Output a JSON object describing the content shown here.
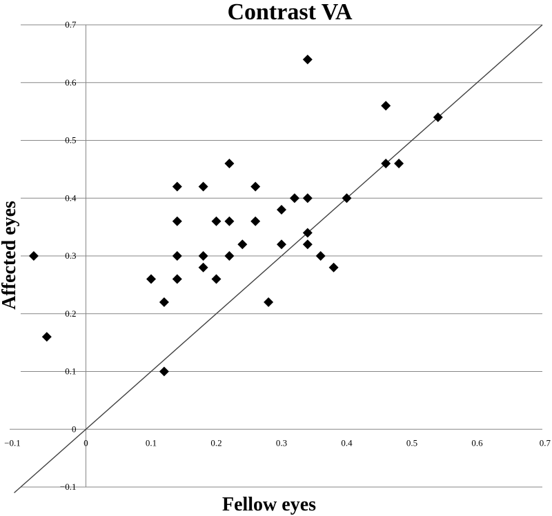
{
  "chart_data": {
    "type": "scatter",
    "title": "Contrast VA",
    "xlabel": "Fellow eyes",
    "ylabel": "Affected eyes",
    "xlim": [
      -0.1,
      0.7
    ],
    "ylim": [
      -0.1,
      0.7
    ],
    "xticks": [
      "−0.1",
      "0",
      "0.1",
      "0.2",
      "0.3",
      "0.4",
      "0.5",
      "0.6",
      "0.7"
    ],
    "yticks": [
      "−0.1",
      "0",
      "0.1",
      "0.2",
      "0.3",
      "0.4",
      "0.5",
      "0.6",
      "0.7"
    ],
    "grid": "horizontal",
    "reference_line": "y = x",
    "marker": "diamond",
    "point_color": "#000000",
    "points": [
      {
        "x": -0.08,
        "y": 0.3
      },
      {
        "x": -0.06,
        "y": 0.16
      },
      {
        "x": 0.1,
        "y": 0.26
      },
      {
        "x": 0.12,
        "y": 0.22
      },
      {
        "x": 0.12,
        "y": 0.1
      },
      {
        "x": 0.14,
        "y": 0.42
      },
      {
        "x": 0.14,
        "y": 0.36
      },
      {
        "x": 0.14,
        "y": 0.3
      },
      {
        "x": 0.14,
        "y": 0.26
      },
      {
        "x": 0.18,
        "y": 0.42
      },
      {
        "x": 0.18,
        "y": 0.3
      },
      {
        "x": 0.18,
        "y": 0.28
      },
      {
        "x": 0.2,
        "y": 0.36
      },
      {
        "x": 0.2,
        "y": 0.26
      },
      {
        "x": 0.22,
        "y": 0.46
      },
      {
        "x": 0.22,
        "y": 0.36
      },
      {
        "x": 0.22,
        "y": 0.3
      },
      {
        "x": 0.24,
        "y": 0.32
      },
      {
        "x": 0.26,
        "y": 0.42
      },
      {
        "x": 0.26,
        "y": 0.36
      },
      {
        "x": 0.28,
        "y": 0.22
      },
      {
        "x": 0.3,
        "y": 0.38
      },
      {
        "x": 0.3,
        "y": 0.32
      },
      {
        "x": 0.32,
        "y": 0.4
      },
      {
        "x": 0.34,
        "y": 0.64
      },
      {
        "x": 0.34,
        "y": 0.4
      },
      {
        "x": 0.34,
        "y": 0.34
      },
      {
        "x": 0.34,
        "y": 0.32
      },
      {
        "x": 0.36,
        "y": 0.3
      },
      {
        "x": 0.38,
        "y": 0.28
      },
      {
        "x": 0.4,
        "y": 0.4
      },
      {
        "x": 0.46,
        "y": 0.56
      },
      {
        "x": 0.46,
        "y": 0.46
      },
      {
        "x": 0.48,
        "y": 0.46
      },
      {
        "x": 0.54,
        "y": 0.54
      }
    ]
  }
}
